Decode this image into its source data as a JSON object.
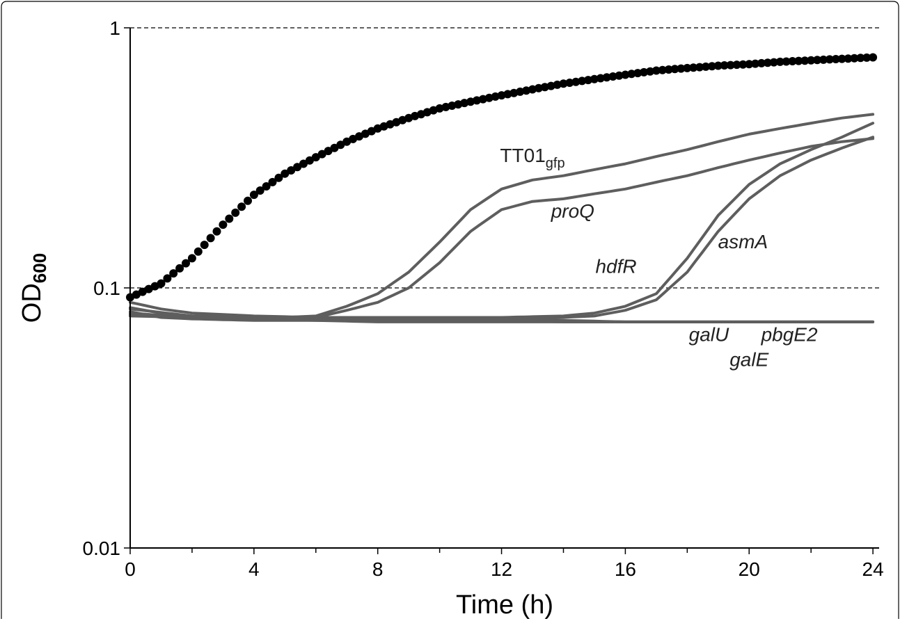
{
  "chart_data": {
    "type": "line",
    "xlabel": "Time (h)",
    "ylabel": "OD",
    "ylabel_sub": "600",
    "y_scale": "log",
    "xlim": [
      0,
      24.2
    ],
    "ylim": [
      0.01,
      1
    ],
    "x_ticks": [
      "0",
      "4",
      "8",
      "12",
      "16",
      "20",
      "24"
    ],
    "x_tick_values": [
      0,
      4,
      8,
      12,
      16,
      20,
      24
    ],
    "x_minor_ticks": [
      2,
      6,
      10,
      14,
      18,
      22
    ],
    "y_ticks": [
      "0.01",
      "0.1",
      "1"
    ],
    "y_tick_values": [
      0.01,
      0.1,
      1
    ],
    "grid": "dashed horizontal lines at 0.1 and 1",
    "colors": {
      "dots": "#000000",
      "lines": "#5e5e5e"
    },
    "series": [
      {
        "name": "TT01gfp",
        "style": "dots",
        "x": [
          0,
          1,
          2,
          3,
          4,
          5,
          6,
          7,
          8,
          9,
          10,
          11,
          12,
          13,
          14,
          15,
          16,
          17,
          18,
          19,
          20,
          21,
          22,
          23,
          24
        ],
        "y": [
          0.092,
          0.104,
          0.13,
          0.175,
          0.228,
          0.275,
          0.318,
          0.365,
          0.41,
          0.45,
          0.49,
          0.52,
          0.55,
          0.58,
          0.61,
          0.635,
          0.66,
          0.685,
          0.7,
          0.715,
          0.725,
          0.74,
          0.75,
          0.76,
          0.77
        ]
      },
      {
        "name": "TT01gfp_line",
        "style": "line",
        "x": [
          0,
          2,
          4,
          5,
          6,
          7,
          8,
          9,
          10,
          11,
          12,
          13,
          14,
          15,
          16,
          17,
          18,
          19,
          20,
          21,
          22,
          23,
          24
        ],
        "y": [
          0.083,
          0.078,
          0.077,
          0.077,
          0.078,
          0.085,
          0.095,
          0.115,
          0.15,
          0.2,
          0.24,
          0.26,
          0.27,
          0.285,
          0.3,
          0.32,
          0.34,
          0.365,
          0.39,
          0.41,
          0.43,
          0.45,
          0.465
        ]
      },
      {
        "name": "proQ",
        "style": "line",
        "x": [
          0,
          2,
          4,
          5,
          6,
          7,
          8,
          9,
          10,
          11,
          12,
          13,
          14,
          15,
          16,
          17,
          18,
          19,
          20,
          21,
          22,
          23,
          24
        ],
        "y": [
          0.08,
          0.077,
          0.076,
          0.076,
          0.077,
          0.082,
          0.088,
          0.1,
          0.125,
          0.165,
          0.2,
          0.215,
          0.22,
          0.23,
          0.24,
          0.255,
          0.27,
          0.29,
          0.31,
          0.33,
          0.35,
          0.365,
          0.375
        ]
      },
      {
        "name": "hdfR",
        "style": "line",
        "x": [
          0,
          4,
          8,
          12,
          14,
          15,
          16,
          17,
          18,
          19,
          20,
          21,
          22,
          23,
          24
        ],
        "y": [
          0.079,
          0.077,
          0.077,
          0.077,
          0.078,
          0.08,
          0.085,
          0.095,
          0.13,
          0.19,
          0.25,
          0.3,
          0.34,
          0.38,
          0.43
        ]
      },
      {
        "name": "asmA",
        "style": "line",
        "x": [
          0,
          4,
          8,
          12,
          14,
          15,
          16,
          17,
          18,
          19,
          20,
          21,
          22,
          23,
          24
        ],
        "y": [
          0.078,
          0.076,
          0.076,
          0.076,
          0.077,
          0.078,
          0.082,
          0.09,
          0.115,
          0.165,
          0.22,
          0.27,
          0.31,
          0.345,
          0.38
        ]
      },
      {
        "name": "galU",
        "style": "line",
        "x": [
          0,
          1,
          2,
          4,
          6,
          8,
          10,
          12,
          14,
          16,
          18,
          20,
          22,
          24
        ],
        "y": [
          0.088,
          0.083,
          0.08,
          0.078,
          0.077,
          0.076,
          0.076,
          0.076,
          0.075,
          0.074,
          0.074,
          0.074,
          0.074,
          0.074
        ]
      },
      {
        "name": "pbgE2",
        "style": "line",
        "x": [
          0,
          1,
          2,
          4,
          6,
          8,
          10,
          12,
          14,
          16,
          18,
          20,
          22,
          24
        ],
        "y": [
          0.084,
          0.08,
          0.078,
          0.076,
          0.075,
          0.075,
          0.075,
          0.075,
          0.074,
          0.074,
          0.074,
          0.074,
          0.074,
          0.074
        ]
      },
      {
        "name": "galE",
        "style": "line",
        "x": [
          0,
          1,
          2,
          4,
          6,
          8,
          10,
          12,
          14,
          16,
          18,
          20,
          22,
          24
        ],
        "y": [
          0.081,
          0.077,
          0.076,
          0.075,
          0.075,
          0.074,
          0.074,
          0.074,
          0.074,
          0.074,
          0.074,
          0.074,
          0.074,
          0.074
        ]
      }
    ],
    "annotations": [
      {
        "id": "tt01",
        "text": "TT01",
        "sub": "gfp",
        "italic": false,
        "x": 13.0,
        "y": 0.305
      },
      {
        "id": "proq",
        "text": "proQ",
        "italic": true,
        "x": 14.3,
        "y": 0.186
      },
      {
        "id": "hdfr",
        "text": "hdfR",
        "italic": true,
        "x": 15.7,
        "y": 0.114
      },
      {
        "id": "asma",
        "text": "asmA",
        "italic": true,
        "x": 19.8,
        "y": 0.142
      },
      {
        "id": "galu",
        "text": "galU",
        "italic": true,
        "x": 18.7,
        "y": 0.0625
      },
      {
        "id": "pbge2",
        "text": "pbgE2",
        "italic": true,
        "x": 21.3,
        "y": 0.0625
      },
      {
        "id": "gale",
        "text": "galE",
        "italic": true,
        "x": 20.0,
        "y": 0.05
      }
    ]
  }
}
